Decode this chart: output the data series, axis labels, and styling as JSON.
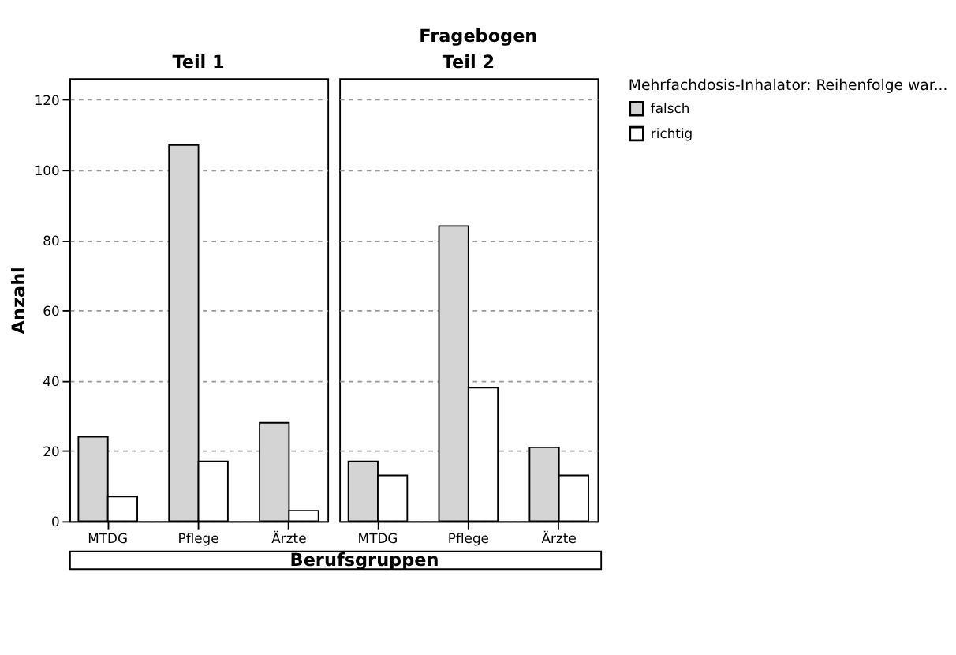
{
  "chart_data": [
    {
      "type": "bar",
      "title": "Teil 1",
      "annotations": [
        "Fragebogen"
      ],
      "xlabel": "Berufsgruppen",
      "ylabel": "Anzahl",
      "legend_title": "Mehrfachdosis-Inhalator: Reihenfolge war...",
      "categories": [
        "MTDG",
        "Pflege",
        "Ärzte"
      ],
      "series": [
        {
          "name": "falsch",
          "color": "#d4d4d4",
          "values": [
            24,
            107,
            28
          ]
        },
        {
          "name": "richtig",
          "color": "#ffffff",
          "values": [
            7,
            17,
            3
          ]
        }
      ],
      "ylim": [
        0,
        126
      ],
      "yticks": [
        0,
        20,
        40,
        60,
        80,
        100,
        120
      ],
      "grid": "y",
      "legend": "top right"
    },
    {
      "type": "bar",
      "title": "Teil 2",
      "categories": [
        "MTDG",
        "Pflege",
        "Ärzte"
      ],
      "series": [
        {
          "name": "falsch",
          "color": "#d4d4d4",
          "values": [
            17,
            84,
            21
          ]
        },
        {
          "name": "richtig",
          "color": "#ffffff",
          "values": [
            13,
            38,
            13
          ]
        }
      ],
      "ylim": [
        0,
        126
      ],
      "yticks": [
        0,
        20,
        40,
        60,
        80,
        100,
        120
      ],
      "grid": "y",
      "tick_labels": "x"
    }
  ]
}
